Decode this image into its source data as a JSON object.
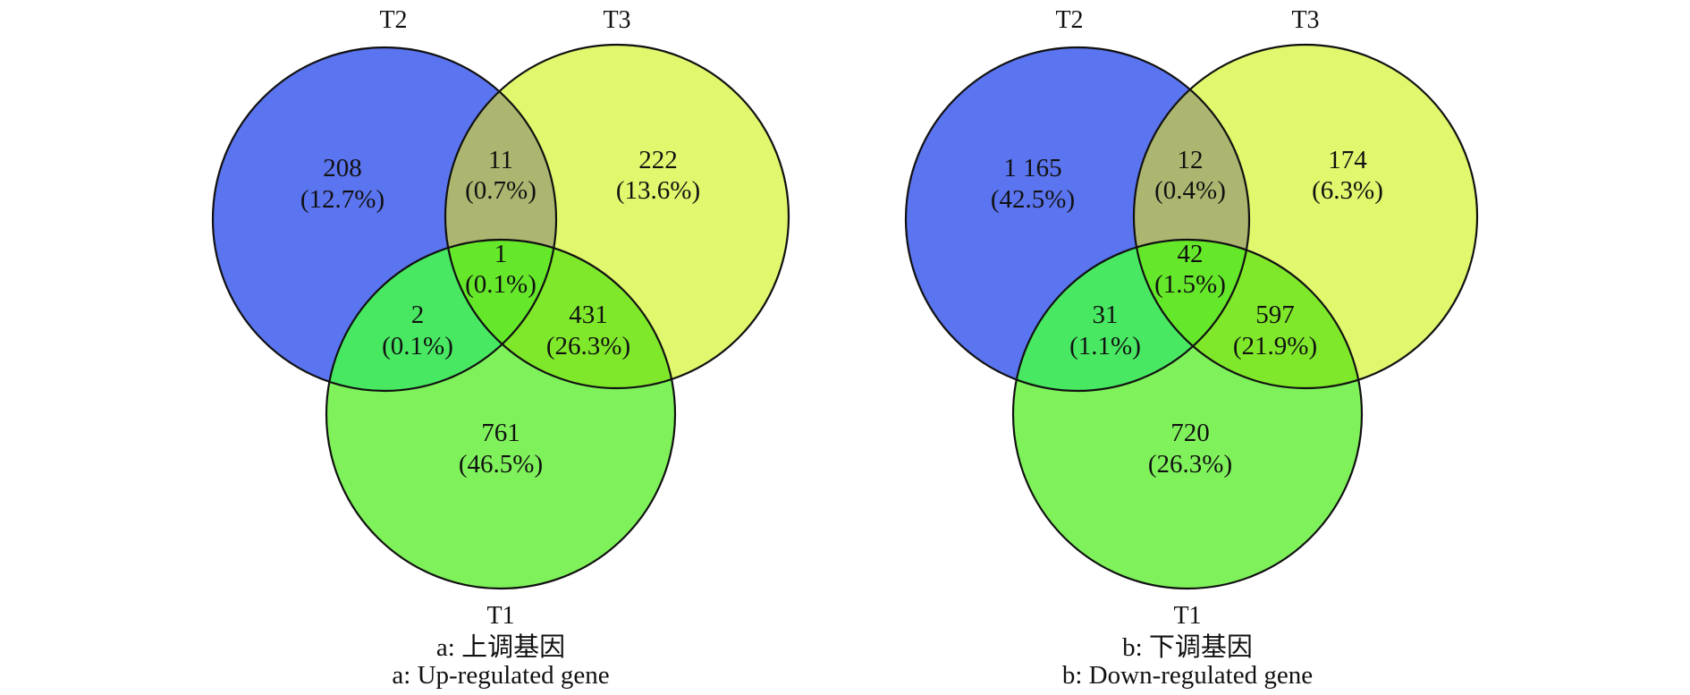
{
  "colors": {
    "T2": "#5b74ef",
    "T3": "#e1f76d",
    "T1": "#7ff25b",
    "T2_T3": "#acb670",
    "T2_T1": "#48e862",
    "T3_T1": "#80e82a",
    "T2_T3_T1": "#66e82a",
    "stroke": "#111111"
  },
  "diagrams": [
    {
      "id": "a",
      "set_labels": {
        "T2": "T2",
        "T3": "T3",
        "T1": "T1"
      },
      "regions": {
        "T2_only": {
          "count": "208",
          "percent": "(12.7%)"
        },
        "T3_only": {
          "count": "222",
          "percent": "(13.6%)"
        },
        "T1_only": {
          "count": "761",
          "percent": "(46.5%)"
        },
        "T2_T3": {
          "count": "11",
          "percent": "(0.7%)"
        },
        "T2_T1": {
          "count": "2",
          "percent": "(0.1%)"
        },
        "T3_T1": {
          "count": "431",
          "percent": "(26.3%)"
        },
        "T2_T3_T1": {
          "count": "1",
          "percent": "(0.1%)"
        }
      },
      "caption_cn": "a: 上调基因",
      "caption_en": "a: Up-regulated gene"
    },
    {
      "id": "b",
      "set_labels": {
        "T2": "T2",
        "T3": "T3",
        "T1": "T1"
      },
      "regions": {
        "T2_only": {
          "count": "1 165",
          "percent": "(42.5%)"
        },
        "T3_only": {
          "count": "174",
          "percent": "(6.3%)"
        },
        "T1_only": {
          "count": "720",
          "percent": "(26.3%)"
        },
        "T2_T3": {
          "count": "12",
          "percent": "(0.4%)"
        },
        "T2_T1": {
          "count": "31",
          "percent": "(1.1%)"
        },
        "T3_T1": {
          "count": "597",
          "percent": "(21.9%)"
        },
        "T2_T3_T1": {
          "count": "42",
          "percent": "(1.5%)"
        }
      },
      "caption_cn": "b: 下调基因",
      "caption_en": "b: Down-regulated gene"
    }
  ]
}
